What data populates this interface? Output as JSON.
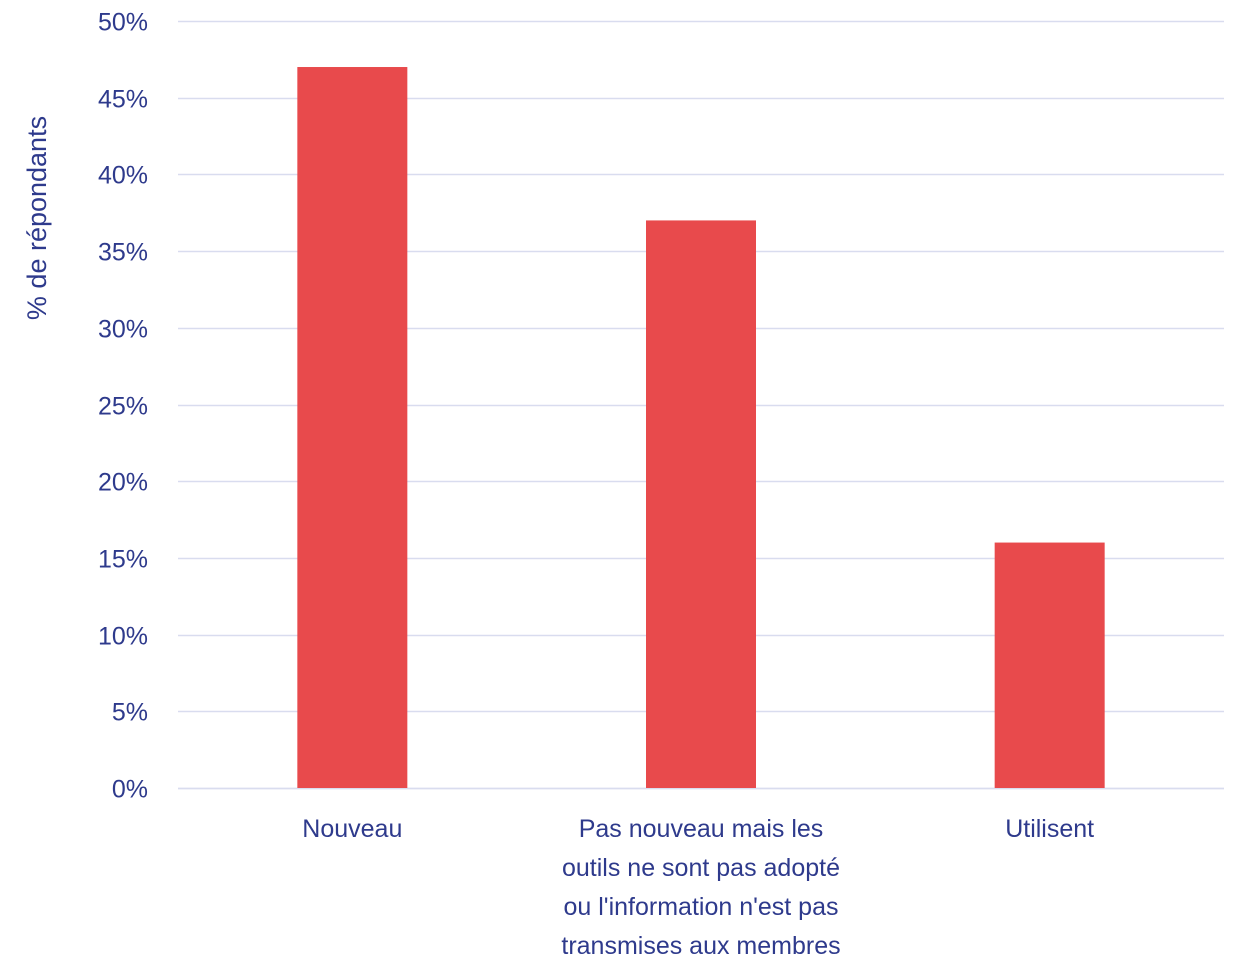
{
  "chart_data": {
    "type": "bar",
    "title": "",
    "xlabel": "",
    "ylabel": "% de répondants",
    "categories": [
      [
        "Nouveau"
      ],
      [
        "Pas nouveau mais les",
        "outils ne sont pas adopté",
        "ou l'information n'est pas",
        "transmises aux membres"
      ],
      [
        "Utilisent"
      ]
    ],
    "values": [
      47,
      37,
      16
    ],
    "value_format": "percent",
    "ylim": [
      0,
      50
    ],
    "yticks": [
      0,
      5,
      10,
      15,
      20,
      25,
      30,
      35,
      40,
      45,
      50
    ],
    "ytick_labels": [
      "0%",
      "5%",
      "10%",
      "15%",
      "20%",
      "25%",
      "30%",
      "35%",
      "40%",
      "45%",
      "50%"
    ],
    "grid": true,
    "legend": "none",
    "colors": {
      "bar": "#E84A4C",
      "text": "#2E3A8C",
      "grid": "#D9DCEF"
    }
  }
}
